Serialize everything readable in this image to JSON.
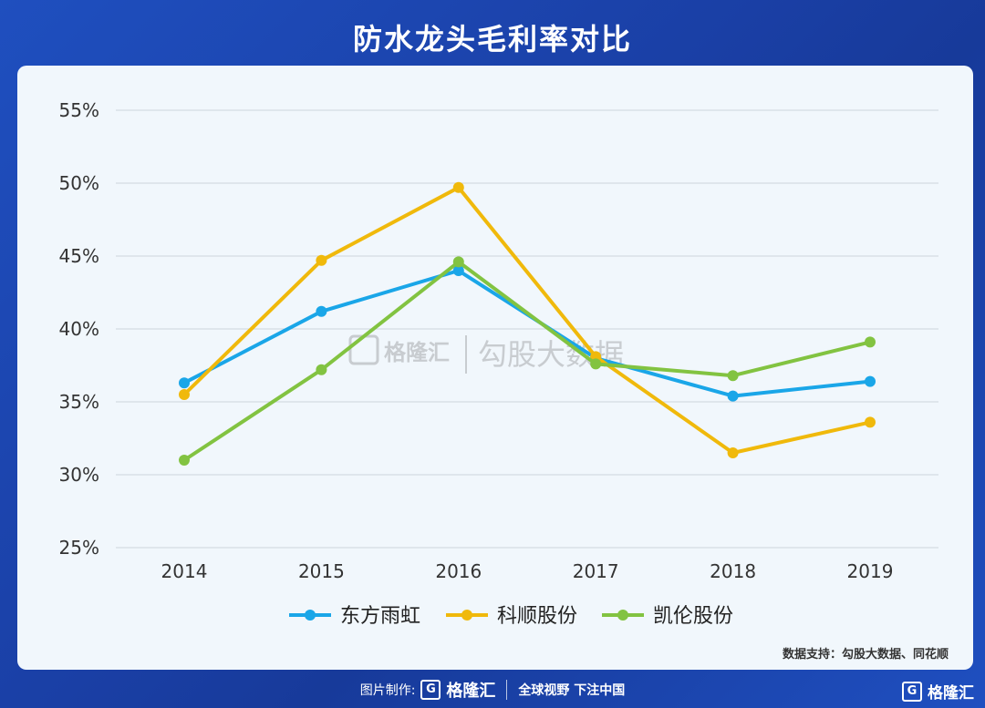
{
  "title": "防水龙头毛利率对比",
  "chart_data": {
    "type": "line",
    "x": [
      "2014",
      "2015",
      "2016",
      "2017",
      "2018",
      "2019"
    ],
    "ylim": [
      25,
      55
    ],
    "yticks": [
      25,
      30,
      35,
      40,
      45,
      50,
      55
    ],
    "ytick_labels": [
      "25%",
      "30%",
      "35%",
      "40%",
      "45%",
      "50%",
      "55%"
    ],
    "grid": true,
    "legend_position": "bottom",
    "series": [
      {
        "name": "东方雨虹",
        "color": "#1aa6e8",
        "values": [
          36.3,
          41.2,
          44.0,
          38.0,
          35.4,
          36.4
        ]
      },
      {
        "name": "科顺股份",
        "color": "#f0b90b",
        "values": [
          35.5,
          44.7,
          49.7,
          38.1,
          31.5,
          33.6
        ]
      },
      {
        "name": "凯伦股份",
        "color": "#82c341",
        "values": [
          31.0,
          37.2,
          44.6,
          37.6,
          36.8,
          39.1
        ]
      }
    ]
  },
  "watermark": {
    "brand": "格隆汇",
    "text": "勾股大数据"
  },
  "source": "数据支持：勾股大数据、同花顺",
  "footer": {
    "made_by": "图片制作:",
    "brand": "格隆汇",
    "slogan": "全球视野 下注中国",
    "logo_letter": "G"
  },
  "corner_brand": "格隆汇"
}
